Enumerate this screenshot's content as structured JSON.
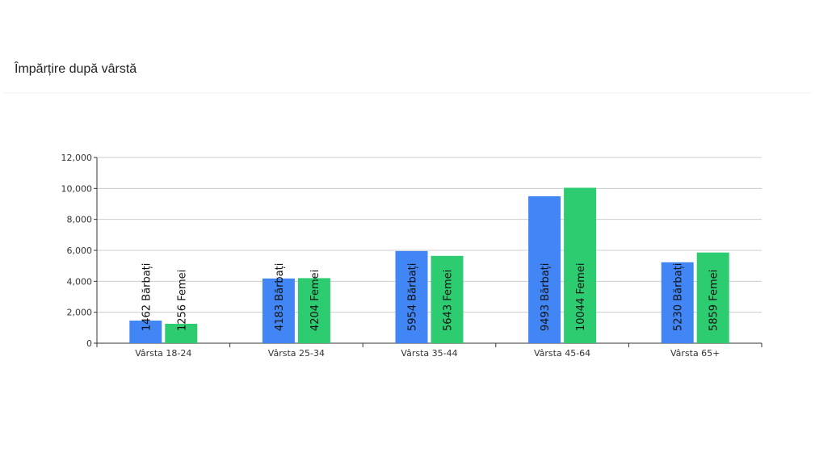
{
  "chart_data": {
    "type": "bar",
    "title": "Împărțire după vârstă",
    "categories": [
      "Vârsta 18-24",
      "Vârsta 25-34",
      "Vârsta 35-44",
      "Vârsta 45-64",
      "Vârsta 65+"
    ],
    "series": [
      {
        "color": "#4285f4",
        "values": [
          1462,
          4183,
          5954,
          9493,
          5230
        ],
        "value_labels": [
          "1462 Bărbați",
          "4183 Bărbați",
          "5954 Bărbați",
          "9493 Bărbați",
          "5230 Bărbați"
        ]
      },
      {
        "color": "#2ecc71",
        "values": [
          1256,
          4204,
          5643,
          10044,
          5859
        ],
        "value_labels": [
          "1256 Femei",
          "4204 Femei",
          "5643 Femei",
          "10044 Femei",
          "5859 Femei"
        ]
      }
    ],
    "ylim": [
      0,
      12000
    ],
    "yticks": [
      0,
      {
        "value": 2000,
        "label": "2,000"
      },
      {
        "value": 4000,
        "label": "4,000"
      },
      {
        "value": 6000,
        "label": "6,000"
      },
      {
        "value": 8000,
        "label": "8,000"
      },
      {
        "value": 10000,
        "label": "10,000"
      },
      {
        "value": 12000,
        "label": "12,000"
      }
    ],
    "grid": true
  }
}
